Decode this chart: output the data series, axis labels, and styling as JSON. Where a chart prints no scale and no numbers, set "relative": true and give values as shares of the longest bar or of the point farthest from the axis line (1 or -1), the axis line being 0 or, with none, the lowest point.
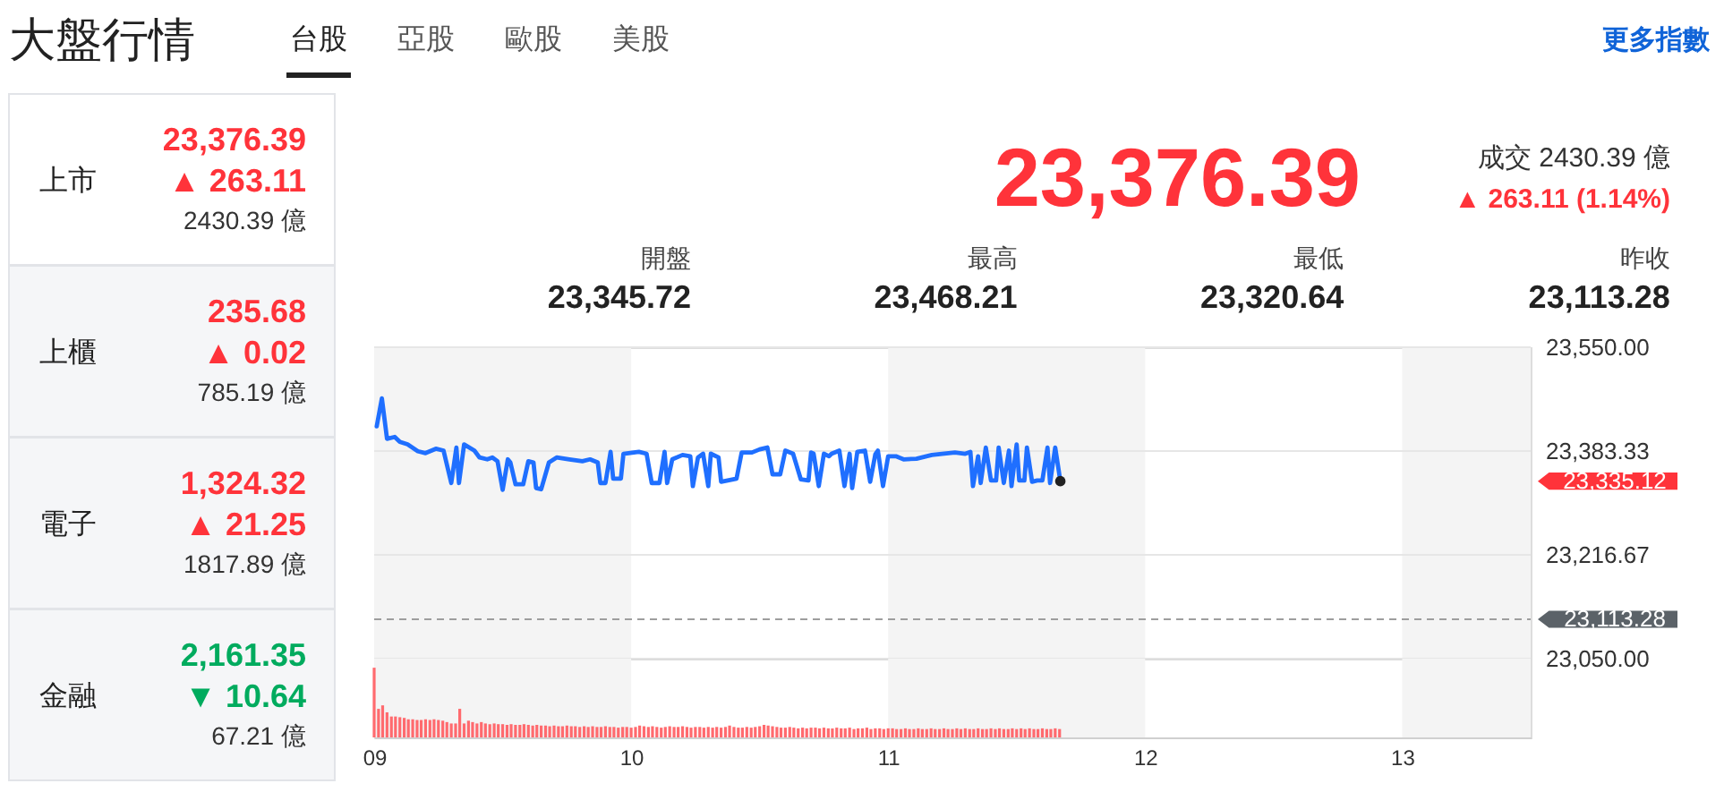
{
  "chart_data": [
    {
      "type": "other",
      "title": "大盤行情",
      "categories": [
        "台股",
        "亞股",
        "歐股",
        "美股"
      ],
      "annotations": [
        "更多指數"
      ]
    },
    {
      "type": "other",
      "categories": [
        "上市",
        "上櫃",
        "電子",
        "金融"
      ],
      "annotations": [
        "23,376.39",
        "▲ 263.11",
        "2430.39 億",
        "235.68",
        "▲ 0.02",
        "785.19 億",
        "1,324.32",
        "▲ 21.25",
        "1817.89 億",
        "2,161.35",
        "▼ 10.64",
        "67.21 億"
      ]
    },
    {
      "type": "other",
      "title": "23,376.39",
      "annotations": [
        "成交 2430.39 億",
        "▲ 263.11 (1.14%)",
        "開盤",
        "最高",
        "最低",
        "昨收",
        "23,345.72",
        "23,468.21",
        "23,320.64",
        "23,113.28"
      ]
    },
    {
      "type": "line",
      "x": [
        9.01,
        9.03,
        9.05,
        9.08,
        9.1,
        9.13,
        9.17,
        9.2,
        9.24,
        9.27,
        9.3,
        9.32,
        9.33,
        9.35,
        9.39,
        9.41,
        9.44,
        9.46,
        9.48,
        9.5,
        9.52,
        9.53,
        9.55,
        9.58,
        9.6,
        9.62,
        9.63,
        9.65,
        9.68,
        9.71,
        9.76,
        9.81,
        9.84,
        9.87,
        9.88,
        9.9,
        9.92,
        9.93,
        9.96,
        9.97,
        10.03,
        10.06,
        10.08,
        10.11,
        10.13,
        10.14,
        10.16,
        10.2,
        10.23,
        10.24,
        10.26,
        10.28,
        10.3,
        10.31,
        10.34,
        10.35,
        10.41,
        10.43,
        10.47,
        10.5,
        10.53,
        10.55,
        10.58,
        10.6,
        10.63,
        10.66,
        10.69,
        10.7,
        10.71,
        10.73,
        10.75,
        10.77,
        10.78,
        10.81,
        10.83,
        10.85,
        10.86,
        10.88,
        10.91,
        10.93,
        10.95,
        10.96,
        10.98,
        11.0,
        11.03,
        11.06,
        11.11,
        11.17,
        11.21,
        11.26,
        11.3,
        11.32,
        11.33,
        11.35,
        11.36,
        11.38,
        11.4,
        11.42,
        11.43,
        11.45,
        11.47,
        11.48,
        11.5,
        11.51,
        11.53,
        11.54,
        11.56,
        11.58,
        11.6,
        11.62,
        11.63,
        11.65,
        11.67
      ],
      "series": [
        {
          "color": "#1f6fff",
          "values": [
            23423,
            23468,
            23403,
            23406,
            23398,
            23394,
            23383,
            23380,
            23387,
            23384,
            23332,
            23389,
            23332,
            23394,
            23384,
            23373,
            23370,
            23373,
            23367,
            23321,
            23370,
            23365,
            23330,
            23330,
            23367,
            23365,
            23324,
            23322,
            23365,
            23373,
            23370,
            23367,
            23370,
            23365,
            23332,
            23332,
            23382,
            23339,
            23339,
            23379,
            23382,
            23379,
            23332,
            23332,
            23382,
            23332,
            23370,
            23377,
            23375,
            23327,
            23373,
            23379,
            23327,
            23379,
            23373,
            23334,
            23339,
            23381,
            23381,
            23386,
            23389,
            23346,
            23346,
            23384,
            23379,
            23338,
            23336,
            23381,
            23379,
            23327,
            23379,
            23375,
            23379,
            23384,
            23327,
            23379,
            23324,
            23382,
            23384,
            23334,
            23378,
            23384,
            23327,
            23375,
            23375,
            23370,
            23371,
            23377,
            23379,
            23381,
            23379,
            23382,
            23327,
            23375,
            23332,
            23389,
            23336,
            23336,
            23389,
            23332,
            23384,
            23327,
            23394,
            23336,
            23336,
            23389,
            23334,
            23336,
            23336,
            23389,
            23332,
            23389,
            23335
          ]
        },
        {
          "type": "scatter",
          "marker": "circle",
          "color": "#222222",
          "x": [
            11.67
          ],
          "values": [
            23335
          ]
        }
      ],
      "xlim": [
        9,
        13.5
      ],
      "ylim": [
        23050,
        23550
      ],
      "yticks": [
        {
          "value": 23550,
          "label": "23,550.00"
        },
        {
          "value": 23383.33,
          "label": "23,383.33"
        },
        {
          "value": 23216.67,
          "label": "23,216.67"
        },
        {
          "value": 23050,
          "label": "23,050.00"
        }
      ],
      "grid": "y",
      "tick_labels": "y",
      "bands": [
        {
          "axis": "x",
          "from": 9,
          "to": 10,
          "color": "#f4f4f4"
        },
        {
          "axis": "x",
          "from": 11,
          "to": 12,
          "color": "#f4f4f4"
        },
        {
          "axis": "x",
          "from": 13,
          "to": 13.5,
          "color": "#f4f4f4"
        }
      ],
      "ref_lines": [
        {
          "axis": "y",
          "value": 23113.28,
          "label": "23,113.28",
          "color": "#9e9e9e",
          "line_style": "dashed"
        }
      ],
      "annotations": [
        "23,335.12"
      ]
    },
    {
      "type": "bar",
      "relative": true,
      "x": [
        9,
        9.017,
        9.033,
        9.05,
        9.067,
        9.083,
        9.1,
        9.117,
        9.133,
        9.15,
        9.167,
        9.183,
        9.2,
        9.217,
        9.233,
        9.25,
        9.267,
        9.283,
        9.3,
        9.317,
        9.333,
        9.35,
        9.367,
        9.383,
        9.4,
        9.417,
        9.433,
        9.45,
        9.467,
        9.483,
        9.5,
        9.517,
        9.533,
        9.55,
        9.567,
        9.583,
        9.6,
        9.617,
        9.633,
        9.65,
        9.667,
        9.683,
        9.7,
        9.717,
        9.733,
        9.75,
        9.767,
        9.783,
        9.8,
        9.817,
        9.833,
        9.85,
        9.867,
        9.883,
        9.9,
        9.917,
        9.933,
        9.95,
        9.967,
        9.983,
        10,
        10.017,
        10.033,
        10.05,
        10.067,
        10.083,
        10.1,
        10.117,
        10.133,
        10.15,
        10.167,
        10.183,
        10.2,
        10.217,
        10.233,
        10.25,
        10.267,
        10.283,
        10.3,
        10.317,
        10.333,
        10.35,
        10.367,
        10.383,
        10.4,
        10.417,
        10.433,
        10.45,
        10.467,
        10.483,
        10.5,
        10.517,
        10.533,
        10.55,
        10.567,
        10.583,
        10.6,
        10.617,
        10.633,
        10.65,
        10.667,
        10.683,
        10.7,
        10.717,
        10.733,
        10.75,
        10.767,
        10.783,
        10.8,
        10.817,
        10.833,
        10.85,
        10.867,
        10.883,
        10.9,
        10.917,
        10.933,
        10.95,
        10.967,
        10.983,
        11,
        11.017,
        11.033,
        11.05,
        11.067,
        11.083,
        11.1,
        11.117,
        11.133,
        11.15,
        11.167,
        11.183,
        11.2,
        11.217,
        11.233,
        11.25,
        11.267,
        11.283,
        11.3,
        11.317,
        11.333,
        11.35,
        11.367,
        11.383,
        11.4,
        11.417,
        11.433,
        11.45,
        11.467,
        11.483,
        11.5,
        11.517,
        11.533,
        11.55,
        11.567,
        11.583,
        11.6,
        11.617,
        11.633,
        11.65,
        11.667
      ],
      "series": [
        {
          "color": "#ff6a6e",
          "values": [
            1.0,
            0.41,
            0.46,
            0.36,
            0.3,
            0.3,
            0.29,
            0.28,
            0.26,
            0.26,
            0.25,
            0.25,
            0.26,
            0.25,
            0.26,
            0.25,
            0.24,
            0.22,
            0.2,
            0.2,
            0.41,
            0.2,
            0.24,
            0.22,
            0.2,
            0.22,
            0.2,
            0.19,
            0.2,
            0.19,
            0.19,
            0.18,
            0.19,
            0.18,
            0.18,
            0.19,
            0.18,
            0.17,
            0.18,
            0.17,
            0.17,
            0.16,
            0.17,
            0.16,
            0.16,
            0.17,
            0.16,
            0.16,
            0.15,
            0.16,
            0.15,
            0.16,
            0.15,
            0.15,
            0.16,
            0.15,
            0.15,
            0.14,
            0.15,
            0.15,
            0.14,
            0.15,
            0.17,
            0.16,
            0.15,
            0.16,
            0.15,
            0.14,
            0.15,
            0.16,
            0.15,
            0.15,
            0.16,
            0.15,
            0.14,
            0.15,
            0.15,
            0.14,
            0.15,
            0.14,
            0.15,
            0.14,
            0.15,
            0.17,
            0.15,
            0.14,
            0.14,
            0.15,
            0.14,
            0.15,
            0.16,
            0.18,
            0.17,
            0.16,
            0.15,
            0.14,
            0.14,
            0.15,
            0.14,
            0.13,
            0.14,
            0.13,
            0.14,
            0.14,
            0.13,
            0.14,
            0.13,
            0.13,
            0.14,
            0.13,
            0.13,
            0.14,
            0.12,
            0.13,
            0.13,
            0.14,
            0.12,
            0.13,
            0.13,
            0.12,
            0.13,
            0.13,
            0.12,
            0.12,
            0.13,
            0.12,
            0.12,
            0.13,
            0.12,
            0.12,
            0.13,
            0.12,
            0.12,
            0.13,
            0.12,
            0.12,
            0.13,
            0.12,
            0.13,
            0.12,
            0.12,
            0.13,
            0.12,
            0.12,
            0.13,
            0.12,
            0.13,
            0.12,
            0.12,
            0.13,
            0.12,
            0.13,
            0.12,
            0.13,
            0.12,
            0.12,
            0.13,
            0.12,
            0.12,
            0.13,
            0.12
          ]
        }
      ],
      "xlim": [
        9,
        13.5
      ],
      "xticks": [
        {
          "value": 9,
          "label": "09"
        },
        10,
        11,
        12,
        13
      ],
      "tick_labels": "x",
      "bands": [
        {
          "axis": "x",
          "from": 9,
          "to": 10,
          "color": "#f4f4f4"
        },
        {
          "axis": "x",
          "from": 11,
          "to": 12,
          "color": "#f4f4f4"
        },
        {
          "axis": "x",
          "from": 13,
          "to": 13.5,
          "color": "#f4f4f4"
        }
      ]
    }
  ]
}
